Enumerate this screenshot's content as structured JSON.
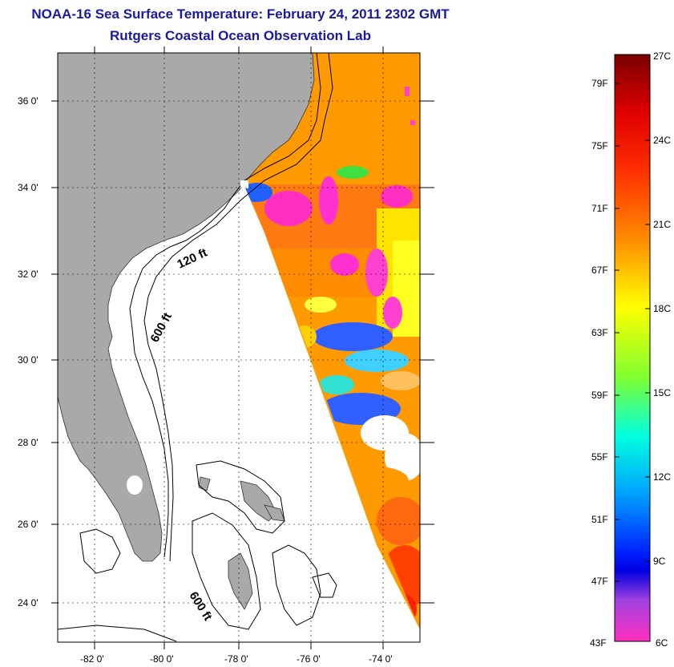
{
  "header": {
    "title": "NOAA-16 Sea Surface Temperature:  February 24, 2011 2302 GMT",
    "subtitle": "Rutgers Coastal Ocean Observation Lab"
  },
  "map": {
    "lat_labels": [
      "36 0'",
      "34 0'",
      "32 0'",
      "30 0'",
      "28 0'",
      "26 0'",
      "24 0'"
    ],
    "lon_labels": [
      "-82 0'",
      "-80 0'",
      "-78 0'",
      "-76 0'",
      "-74 0'"
    ],
    "contours": [
      {
        "label": "120 ft"
      },
      {
        "label": "600 ft"
      },
      {
        "label": "600 ft"
      }
    ],
    "colors": {
      "land": "#a9a9a9",
      "ocean": "#ffffff",
      "grid": "#000000"
    }
  },
  "colorbar": {
    "f_labels": [
      "79F",
      "75F",
      "71F",
      "67F",
      "63F",
      "59F",
      "55F",
      "51F",
      "47F",
      "43F"
    ],
    "c_labels": [
      "27C",
      "24C",
      "21C",
      "18C",
      "15C",
      "12C",
      "9C",
      "6C"
    ],
    "stops": [
      "#7a0000",
      "#ff0000",
      "#ff8000",
      "#ffff00",
      "#80ff40",
      "#00ffff",
      "#0080ff",
      "#0000ff",
      "#8040ff",
      "#ff00ff",
      "#ff40c0"
    ]
  }
}
